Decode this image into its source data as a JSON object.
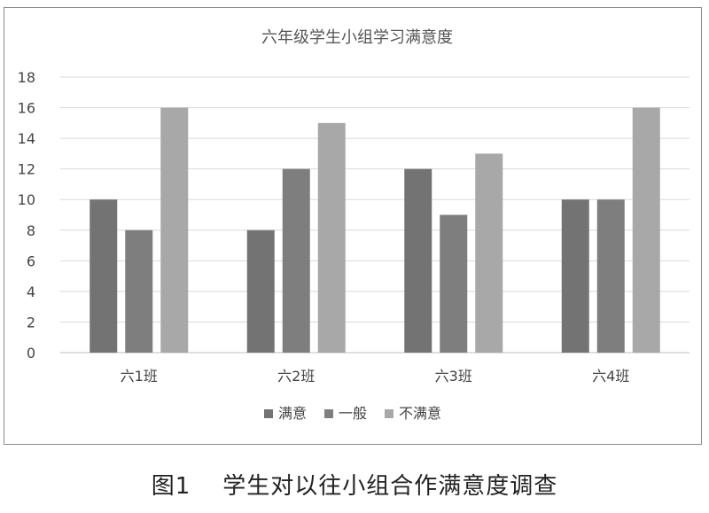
{
  "chart_data": {
    "type": "bar",
    "title": "六年级学生小组学习满意度",
    "categories": [
      "六1班",
      "六2班",
      "六3班",
      "六4班"
    ],
    "series": [
      {
        "name": "满意",
        "values": [
          10,
          8,
          12,
          10
        ],
        "color": "#737373"
      },
      {
        "name": "一般",
        "values": [
          8,
          12,
          9,
          10
        ],
        "color": "#7e7e7e"
      },
      {
        "name": "不满意",
        "values": [
          16,
          15,
          13,
          16
        ],
        "color": "#a8a8a8"
      }
    ],
    "y_ticks": [
      "0",
      "2",
      "4",
      "6",
      "8",
      "10",
      "12",
      "14",
      "16",
      "18"
    ],
    "ylim": [
      0,
      18
    ],
    "grid": true,
    "legend_position": "bottom"
  },
  "caption": {
    "number": "图1",
    "text": "学生对以往小组合作满意度调查"
  }
}
